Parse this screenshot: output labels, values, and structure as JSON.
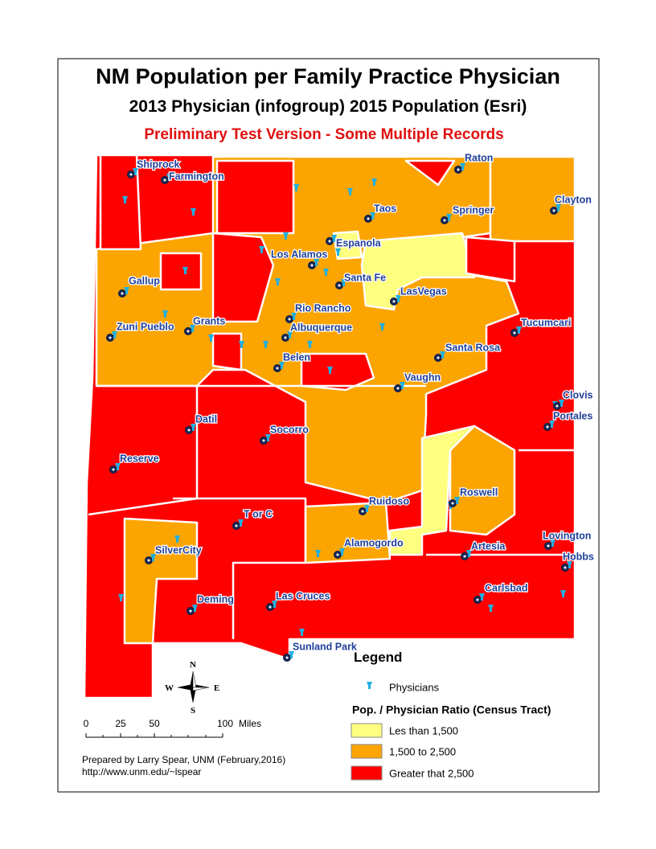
{
  "header": {
    "title": "NM Population per Family Practice Physician",
    "subtitle": "2013 Physician (infogroup) 2015 Population (Esri)",
    "note": "Preliminary Test Version - Some Multiple Records"
  },
  "cities": [
    "Shiprock",
    "Farmington",
    "Raton",
    "Clayton",
    "Taos",
    "Springer",
    "Espanola",
    "Los Alamos",
    "Santa Fe",
    "Gallup",
    "LasVegas",
    "Rio Rancho",
    "Tucumcari",
    "Zuni Pueblo",
    "Grants",
    "Albuquerque",
    "Santa Rosa",
    "Belen",
    "Vaughn",
    "Clovis",
    "Portales",
    "Datil",
    "Socorro",
    "Reserve",
    "Roswell",
    "Ruidoso",
    "T or C",
    "Lovington",
    "Alamogordo",
    "Artesia",
    "SilverCity",
    "Hobbs",
    "Carlsbad",
    "Deming",
    "Las Cruces",
    "Sunland Park"
  ],
  "legend": {
    "title": "Legend",
    "physicians": "Physicians",
    "ratio_title": "Pop. / Physician Ratio (Census Tract)",
    "classes": [
      "Les than 1,500",
      "1,500 to 2,500",
      "Greater that 2,500"
    ]
  },
  "compass": {
    "n": "N",
    "e": "E",
    "s": "S",
    "w": "W"
  },
  "scale_bar": {
    "labels": [
      0,
      25,
      50,
      100
    ],
    "unit": "Miles"
  },
  "credits": [
    "Prepared by Larry Spear, UNM (February,2016)",
    "http://www.unm.edu/~lspear"
  ]
}
